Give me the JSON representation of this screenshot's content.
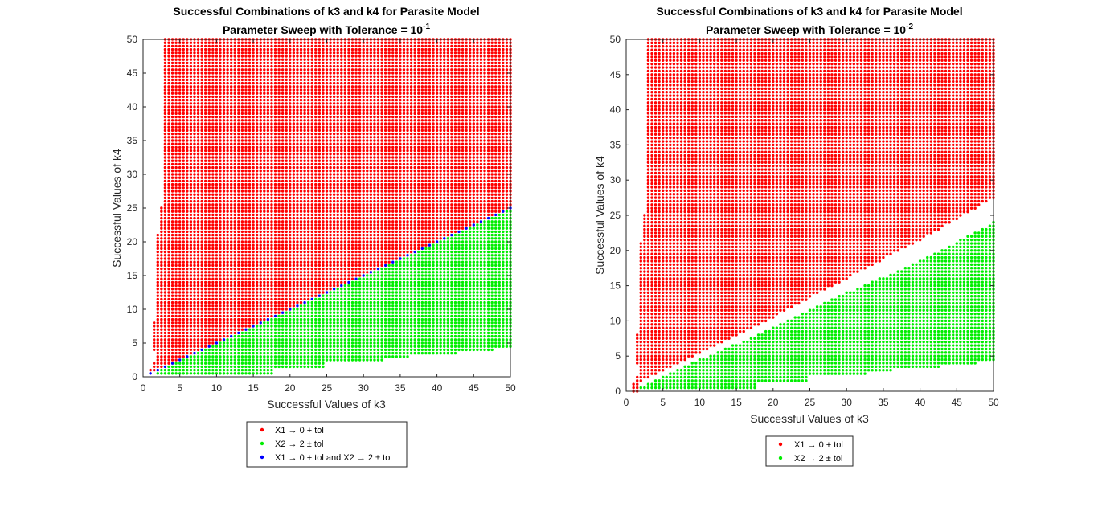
{
  "chart_data": [
    {
      "type": "scatter",
      "title": "Successful Combinations of k3 and k4 for Parasite Model",
      "subtitle_prefix": "Parameter Sweep with Tolerance = 10",
      "subtitle_exponent": "-1",
      "xlabel": "Successful Values of k3",
      "ylabel": "Successful Values of k4",
      "xlim": [
        0,
        50
      ],
      "ylim": [
        0,
        50
      ],
      "xticks": [
        "0",
        "5",
        "10",
        "15",
        "20",
        "25",
        "30",
        "35",
        "40",
        "45",
        "50"
      ],
      "yticks": [
        "0",
        "5",
        "10",
        "15",
        "20",
        "25",
        "30",
        "35",
        "40",
        "45",
        "50"
      ],
      "grid": false,
      "legend_position": "below",
      "sweep_step": 0.5,
      "series": [
        {
          "name": "X1 → 0 + tol",
          "color": "#ff0000",
          "region": "k4 > 0.5*k3 + 0.05 (for k3 >= 2); narrow strip near k3 = 1-2",
          "boundary_points": [
            [
              1,
              0.5
            ],
            [
              2,
              1.0
            ],
            [
              10,
              5.0
            ],
            [
              20,
              10.0
            ],
            [
              30,
              15.0
            ],
            [
              40,
              20.0
            ],
            [
              50,
              25.0
            ]
          ]
        },
        {
          "name": "X2 → 2 ± tol",
          "color": "#00ee00",
          "region": "k4 < 0.5*k3 - 0.05; lower envelope rises in steps",
          "lower_envelope": [
            [
              2,
              0.5
            ],
            [
              18,
              0.5
            ],
            [
              18,
              1.5
            ],
            [
              25,
              1.5
            ],
            [
              25,
              2.5
            ],
            [
              33,
              2.5
            ],
            [
              33,
              3.0
            ],
            [
              40,
              3.5
            ],
            [
              46,
              4.0
            ],
            [
              50,
              4.5
            ]
          ]
        },
        {
          "name": "X1 → 0 + tol and X2 → 2 ± tol",
          "color": "#0000ff",
          "region": "k4 = 0.5*k3 (diagonal line)",
          "line_points": [
            [
              1,
              0.5
            ],
            [
              10,
              5.0
            ],
            [
              20,
              10.0
            ],
            [
              30,
              15.0
            ],
            [
              40,
              20.0
            ],
            [
              50,
              25.0
            ]
          ]
        }
      ]
    },
    {
      "type": "scatter",
      "title": "Successful Combinations of k3 and k4 for Parasite Model",
      "subtitle_prefix": "Parameter Sweep with Tolerance = 10",
      "subtitle_exponent": "-2",
      "xlabel": "Successful Values of k3",
      "ylabel": "Successful Values of k4",
      "xlim": [
        0,
        50
      ],
      "ylim": [
        0,
        50
      ],
      "xticks": [
        "0",
        "5",
        "10",
        "15",
        "20",
        "25",
        "30",
        "35",
        "40",
        "45",
        "50"
      ],
      "yticks": [
        "0",
        "5",
        "10",
        "15",
        "20",
        "25",
        "30",
        "35",
        "40",
        "45",
        "50"
      ],
      "grid": false,
      "legend_position": "below",
      "sweep_step": 0.5,
      "series": [
        {
          "name": "X1 → 0 + tol",
          "color": "#ff0000",
          "region": "k4 > 0.5*k3 + 0.005*(k3 + 100); narrow strip near k3 = 1-2",
          "boundary_points": [
            [
              2,
              1.5
            ],
            [
              10,
              5.5
            ],
            [
              20,
              10.5
            ],
            [
              30,
              16.0
            ],
            [
              40,
              21.5
            ],
            [
              50,
              27.5
            ]
          ]
        },
        {
          "name": "X2 → 2 ± tol",
          "color": "#00ee00",
          "region": "k4 < 0.5*k3 - 0.005*(k3 + 100); lower envelope rises in steps",
          "upper_boundary_points": [
            [
              2,
              0.5
            ],
            [
              10,
              4.5
            ],
            [
              20,
              9.0
            ],
            [
              30,
              14.0
            ],
            [
              40,
              18.5
            ],
            [
              50,
              24.0
            ]
          ],
          "lower_envelope": [
            [
              2,
              0.5
            ],
            [
              18,
              0.5
            ],
            [
              18,
              1.5
            ],
            [
              25,
              1.5
            ],
            [
              25,
              2.5
            ],
            [
              33,
              2.5
            ],
            [
              33,
              3.0
            ],
            [
              40,
              3.5
            ],
            [
              46,
              4.0
            ],
            [
              50,
              4.5
            ]
          ]
        }
      ]
    }
  ]
}
